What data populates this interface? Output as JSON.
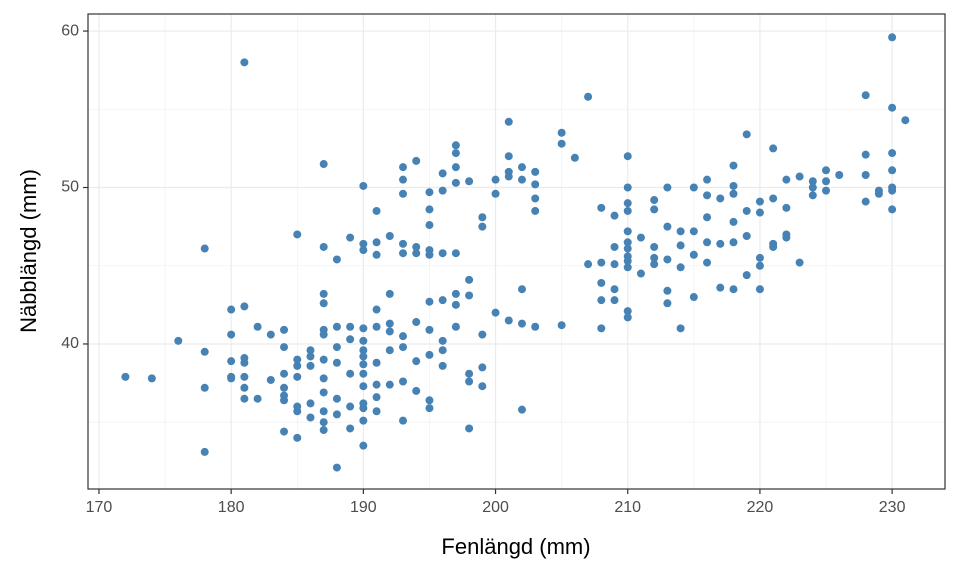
{
  "chart_data": {
    "type": "scatter",
    "x_label": "Fenlängd (mm)",
    "y_label": "Näbblängd (mm)",
    "color": "#4682b4",
    "grid": true,
    "xlim": [
      169.17,
      234.0
    ],
    "ylim": [
      30.73,
      61.09
    ],
    "xticks": [
      170,
      180,
      190,
      200,
      210,
      220,
      230
    ],
    "yticks": [
      40,
      50,
      60
    ],
    "x": [
      172,
      174,
      176,
      178,
      178,
      178,
      178,
      180,
      180,
      180,
      180,
      180,
      181,
      181,
      181,
      181,
      181,
      181,
      181,
      182,
      182,
      183,
      183,
      184,
      184,
      184,
      184,
      184,
      184,
      184,
      185,
      185,
      185,
      185,
      185,
      185,
      185,
      186,
      186,
      186,
      186,
      186,
      187,
      187,
      187,
      187,
      187,
      187,
      187,
      187,
      187,
      187,
      187,
      187,
      188,
      188,
      188,
      188,
      188,
      188,
      188,
      189,
      189,
      189,
      189,
      189,
      189,
      190,
      190,
      190,
      190,
      190,
      190,
      190,
      190,
      190,
      190,
      190,
      190,
      190,
      190,
      191,
      191,
      191,
      191,
      191,
      191,
      191,
      191,
      191,
      192,
      192,
      192,
      192,
      192,
      192,
      193,
      193,
      193,
      193,
      193,
      193,
      193,
      193,
      193,
      194,
      194,
      194,
      194,
      194,
      194,
      195,
      195,
      195,
      195,
      195,
      195,
      195,
      195,
      195,
      195,
      196,
      196,
      196,
      196,
      196,
      196,
      196,
      197,
      197,
      197,
      197,
      197,
      197,
      197,
      197,
      198,
      198,
      198,
      198,
      198,
      198,
      199,
      199,
      199,
      199,
      199,
      200,
      200,
      200,
      201,
      201,
      201,
      201,
      201,
      202,
      202,
      202,
      202,
      202,
      203,
      203,
      203,
      203,
      203,
      205,
      205,
      205,
      206,
      207,
      207,
      208,
      208,
      208,
      208,
      208,
      209,
      209,
      209,
      209,
      209,
      210,
      210,
      210,
      210,
      210,
      210,
      210,
      210,
      210,
      210,
      210,
      210,
      211,
      211,
      212,
      212,
      212,
      212,
      212,
      213,
      213,
      213,
      213,
      213,
      214,
      214,
      214,
      214,
      215,
      215,
      215,
      215,
      216,
      216,
      216,
      216,
      216,
      217,
      217,
      217,
      218,
      218,
      218,
      218,
      218,
      218,
      219,
      219,
      219,
      219,
      220,
      220,
      220,
      220,
      220,
      221,
      221,
      221,
      221,
      222,
      222,
      222,
      222,
      223,
      223,
      224,
      224,
      224,
      225,
      225,
      225,
      226,
      228,
      228,
      228,
      228,
      229,
      229,
      230,
      230,
      230,
      230,
      230,
      230,
      230,
      231
    ],
    "values": [
      37.9,
      37.8,
      40.2,
      46.1,
      39.5,
      37.2,
      33.1,
      42.2,
      40.6,
      38.9,
      37.9,
      37.8,
      58.0,
      42.4,
      39.1,
      38.8,
      37.9,
      37.2,
      36.5,
      41.1,
      36.5,
      40.6,
      37.7,
      40.9,
      39.8,
      38.1,
      37.2,
      36.7,
      36.4,
      34.4,
      47.0,
      39.0,
      38.6,
      37.9,
      36.0,
      35.7,
      34.0,
      39.6,
      39.2,
      38.6,
      36.2,
      35.3,
      51.5,
      46.2,
      43.2,
      42.6,
      40.9,
      40.6,
      39.0,
      37.8,
      36.9,
      35.7,
      35.0,
      34.5,
      45.4,
      41.1,
      39.8,
      38.8,
      36.5,
      35.5,
      32.1,
      46.8,
      41.1,
      40.3,
      38.1,
      36.0,
      34.6,
      50.1,
      46.4,
      46.0,
      41.0,
      40.2,
      39.6,
      39.2,
      38.7,
      38.1,
      37.3,
      36.2,
      35.9,
      35.1,
      33.5,
      48.5,
      46.5,
      45.7,
      42.2,
      41.1,
      38.8,
      37.4,
      36.6,
      35.7,
      46.9,
      43.2,
      41.3,
      40.8,
      39.6,
      37.4,
      51.3,
      50.5,
      49.6,
      46.4,
      45.8,
      40.5,
      39.8,
      37.6,
      35.1,
      51.7,
      46.2,
      45.8,
      41.4,
      38.9,
      37.0,
      49.7,
      48.6,
      47.6,
      46.0,
      45.7,
      42.7,
      40.9,
      39.3,
      36.4,
      35.9,
      50.9,
      49.8,
      45.8,
      42.8,
      40.2,
      39.6,
      38.6,
      52.7,
      52.2,
      51.3,
      50.3,
      45.8,
      43.2,
      42.5,
      41.1,
      50.4,
      44.1,
      43.1,
      38.1,
      37.6,
      34.6,
      48.1,
      47.5,
      40.6,
      38.5,
      37.3,
      50.5,
      49.6,
      42.0,
      54.2,
      52.0,
      51.0,
      50.7,
      41.5,
      51.3,
      50.5,
      43.5,
      41.3,
      35.8,
      51.0,
      50.2,
      49.3,
      48.5,
      41.1,
      53.5,
      52.8,
      41.2,
      51.9,
      55.8,
      45.1,
      48.7,
      45.2,
      43.9,
      42.8,
      41.0,
      48.2,
      46.2,
      45.1,
      43.5,
      42.8,
      52.0,
      50.0,
      49.0,
      48.5,
      47.2,
      46.5,
      46.1,
      45.6,
      45.3,
      44.9,
      42.1,
      41.7,
      46.8,
      44.5,
      49.2,
      48.6,
      46.2,
      45.5,
      45.1,
      50.0,
      47.5,
      45.4,
      43.4,
      42.6,
      47.2,
      46.3,
      44.9,
      41.0,
      50.0,
      47.2,
      45.7,
      43.0,
      50.5,
      49.5,
      48.1,
      46.5,
      45.2,
      49.3,
      46.4,
      43.6,
      51.4,
      50.1,
      49.6,
      47.8,
      46.5,
      43.5,
      53.4,
      48.5,
      46.9,
      44.4,
      49.1,
      48.4,
      45.5,
      45.0,
      43.5,
      52.5,
      49.3,
      46.4,
      46.2,
      50.5,
      48.7,
      47.0,
      46.8,
      50.7,
      45.2,
      50.4,
      50.0,
      49.5,
      51.1,
      50.4,
      49.8,
      50.8,
      55.9,
      52.1,
      50.8,
      49.1,
      49.8,
      49.6,
      59.6,
      55.1,
      52.2,
      51.1,
      50.0,
      49.8,
      48.6,
      54.3
    ]
  }
}
